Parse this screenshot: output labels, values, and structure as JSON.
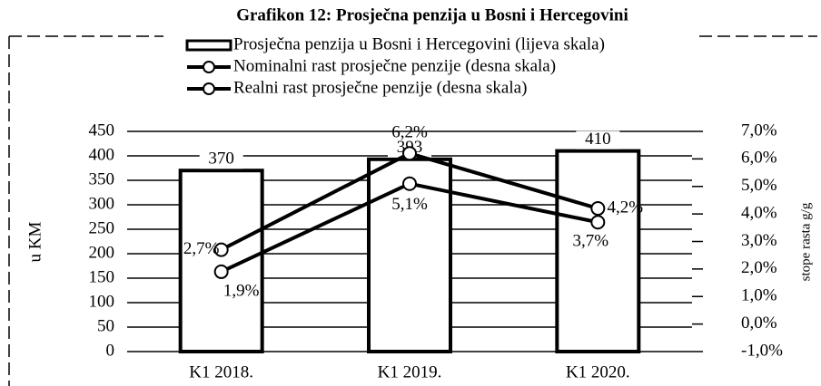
{
  "chart_data": {
    "type": "bar_line",
    "title": "Grafikon 12: Prosječna penzija u Bosni i Hercegovini",
    "categories": [
      "K1 2018.",
      "K1 2019.",
      "K1 2020."
    ],
    "ylabel": "u KM",
    "y2label": "stope rasta g/g",
    "ylim": [
      0,
      450
    ],
    "yticks": [
      0,
      50,
      100,
      150,
      200,
      250,
      300,
      350,
      400,
      450
    ],
    "y2lim": [
      -1,
      7
    ],
    "y2ticks": [
      {
        "value": -1,
        "label": "-1,0%"
      },
      {
        "value": 0,
        "label": "0,0%"
      },
      {
        "value": 1,
        "label": "1,0%"
      },
      {
        "value": 2,
        "label": "2,0%"
      },
      {
        "value": 3,
        "label": "3,0%"
      },
      {
        "value": 4,
        "label": "4,0%"
      },
      {
        "value": 5,
        "label": "5,0%"
      },
      {
        "value": 6,
        "label": "6,0%"
      },
      {
        "value": 7,
        "label": "7,0%"
      }
    ],
    "grid": true,
    "series": [
      {
        "name": "Prosječna penzija u Bosni i Hercegovini (lijeva skala)",
        "kind": "bar",
        "color": "#ffffff",
        "values": [
          370,
          393,
          410
        ]
      },
      {
        "name": "Nominalni rast prosječne penzije (desna skala)",
        "kind": "line",
        "axis": "y2",
        "color": "#000000",
        "values": [
          2.7,
          6.2,
          4.2
        ],
        "value_labels": [
          "2,7%",
          "6,2%",
          "4,2%"
        ]
      },
      {
        "name": "Realni rast prosječne penzije (desna skala)",
        "kind": "line",
        "axis": "y2",
        "color": "#000000",
        "values": [
          1.9,
          5.1,
          3.7
        ],
        "value_labels": [
          "1,9%",
          "5,1%",
          "3,7%"
        ]
      }
    ]
  }
}
